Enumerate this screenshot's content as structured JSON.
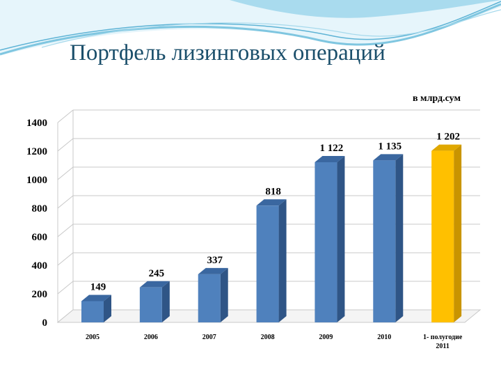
{
  "slide": {
    "title": "Портфель лизинговых операций",
    "unit_note": "в млрд.сум"
  },
  "colors": {
    "bar_front": "#4f81bd",
    "bar_side": "#2f5586",
    "bar_top": "#3a67a0",
    "highlight_front": "#ffc000",
    "highlight_side": "#c99400",
    "highlight_top": "#e0a800",
    "gridline": "#c8c8c8",
    "title": "#1b4f6b",
    "wave": "#7fc6e0"
  },
  "chart_data": {
    "type": "bar",
    "title": "",
    "categories": [
      "2005",
      "2006",
      "2007",
      "2008",
      "2009",
      "2010",
      "1- полугодие 2011"
    ],
    "values": [
      149,
      245,
      337,
      818,
      1122,
      1135,
      1202
    ],
    "value_labels": [
      "149",
      "245",
      "337",
      "818",
      "1 122",
      "1 135",
      "1 202"
    ],
    "highlight_index": 6,
    "ylim": [
      0,
      1400
    ],
    "yticks": [
      "0",
      "200",
      "400",
      "600",
      "800",
      "1000",
      "1200",
      "1400"
    ],
    "grid": true,
    "xlabel": "",
    "ylabel": ""
  }
}
